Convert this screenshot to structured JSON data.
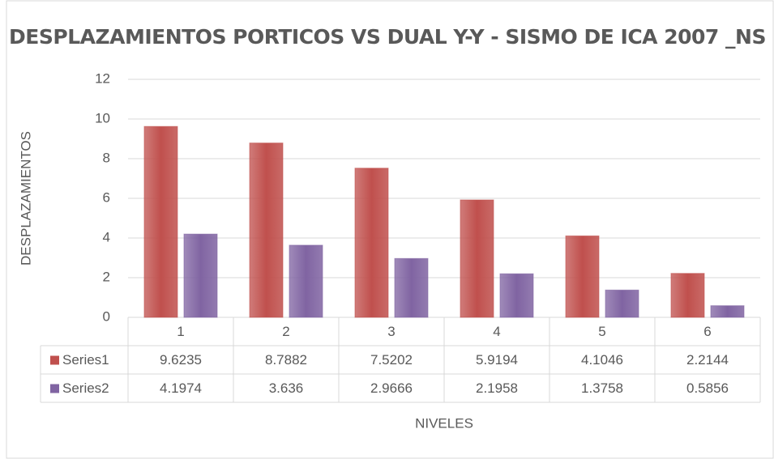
{
  "chart_data": {
    "type": "bar",
    "title": "DESPLAZAMIENTOS PORTICOS VS DUAL Y-Y - SISMO DE ICA 2007 _NS",
    "x_label": "NIVELES",
    "y_label": "DESPLAZAMIENTOS",
    "categories": [
      "1",
      "2",
      "3",
      "4",
      "5",
      "6"
    ],
    "series": [
      {
        "name": "Series1",
        "color": "#c0504d",
        "values": [
          9.6235,
          8.7882,
          7.5202,
          5.9194,
          4.1046,
          2.2144
        ]
      },
      {
        "name": "Series2",
        "color": "#8064a2",
        "values": [
          4.1974,
          3.636,
          2.9666,
          2.1958,
          1.3758,
          0.5856
        ]
      }
    ],
    "ylim": [
      0,
      12
    ],
    "yticks": [
      0,
      2,
      4,
      6,
      8,
      10,
      12
    ],
    "grid": true
  }
}
